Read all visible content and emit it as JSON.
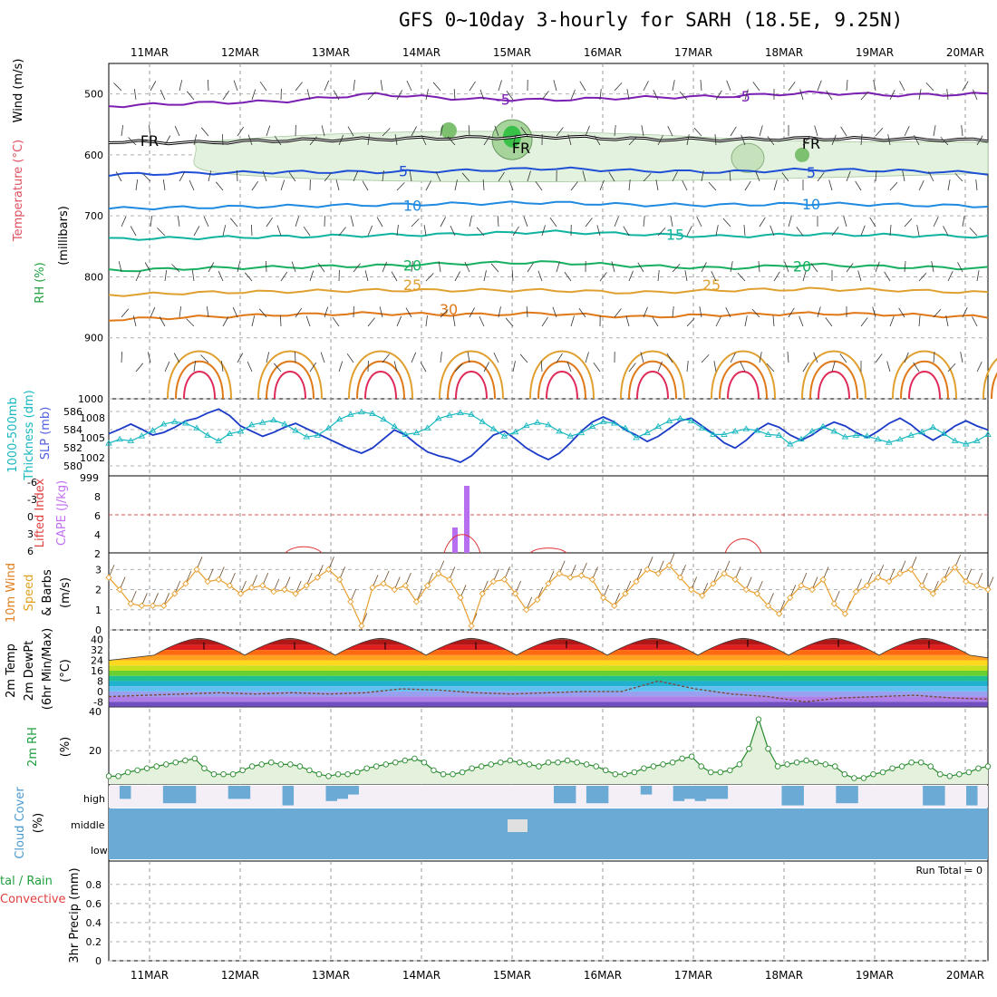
{
  "title": "GFS 0~10day 3-hourly for SARH (18.5E, 9.25N)",
  "dates": [
    "11MAR",
    "12MAR",
    "13MAR",
    "14MAR",
    "15MAR",
    "16MAR",
    "17MAR",
    "18MAR",
    "19MAR",
    "20MAR"
  ],
  "colors": {
    "purple": "#7b1fb3",
    "blue": "#1f4fd6",
    "lightblue": "#1f8ae0",
    "teal": "#10b3a0",
    "green": "#18b060",
    "gold": "#e0a030",
    "orange": "#e07818",
    "red": "#e02a5a",
    "cyan": "#18b8c0",
    "navy": "#1a3ac8",
    "precipBg": "#ffffff",
    "cloud": "#6aaad5"
  },
  "chart_data": [
    {
      "id": "upper_air",
      "type": "contour",
      "ylabel": "(millibars)",
      "legend": [
        "Wind (m/s)",
        "Temperature (°C)",
        "RH (%)"
      ],
      "yticks": [
        500,
        600,
        700,
        800,
        900,
        1000
      ],
      "ylim": [
        1000,
        450
      ],
      "isotherms": [
        {
          "label": "-5",
          "levels": [
            520,
            515,
            512,
            500,
            508,
            510,
            506,
            504,
            498,
            502,
            500
          ]
        },
        {
          "label": "FR",
          "levels": [
            578,
            580,
            576,
            574,
            572,
            570,
            574,
            575,
            573,
            574,
            576
          ]
        },
        {
          "label": "5",
          "levels": [
            632,
            630,
            628,
            628,
            626,
            622,
            626,
            628,
            624,
            626,
            630
          ]
        },
        {
          "label": "10",
          "levels": [
            688,
            686,
            684,
            682,
            680,
            678,
            682,
            682,
            680,
            682,
            684
          ]
        },
        {
          "label": "15",
          "levels": [
            738,
            736,
            734,
            732,
            730,
            726,
            730,
            734,
            730,
            732,
            734
          ]
        },
        {
          "label": "20",
          "levels": [
            790,
            786,
            784,
            782,
            778,
            776,
            782,
            786,
            780,
            784,
            786
          ]
        },
        {
          "label": "25",
          "levels": [
            830,
            826,
            824,
            822,
            822,
            822,
            826,
            822,
            820,
            822,
            826
          ]
        },
        {
          "label": "30",
          "levels": [
            870,
            866,
            862,
            860,
            862,
            860,
            866,
            862,
            860,
            862,
            866
          ]
        }
      ],
      "contour_labels": [
        "-5",
        "-5",
        "FR",
        "FR",
        "FR",
        "5",
        "5",
        "10",
        "10",
        "15",
        "20",
        "20",
        "25",
        "25",
        "30",
        "10",
        "10",
        "10",
        "30",
        "30",
        "10",
        "10"
      ]
    },
    {
      "id": "thickness_slp",
      "type": "line",
      "ylabel_left": "1000-500mb Thickness (dm)",
      "ylabel_right": "SLP (mb)",
      "yticks_left": [
        586,
        584,
        582,
        580
      ],
      "yticks_right": [
        1008,
        1005,
        1002,
        999
      ],
      "series": [
        {
          "name": "Thickness",
          "unit": "dm",
          "ylim": [
            578,
            586.5
          ],
          "values": [
            581.5,
            582.0,
            581.8,
            582.4,
            583.1,
            583.9,
            584.2,
            584.0,
            583.4,
            582.5,
            581.8,
            582.7,
            583.0,
            583.8,
            584.1,
            584.4,
            583.9,
            583.1,
            582.3,
            582.5,
            583.4,
            584.5,
            585.1,
            585.4,
            585.2,
            584.5,
            583.6,
            582.6,
            582.8,
            583.4,
            584.6,
            585.0,
            585.3,
            585.1,
            584.2,
            583.3,
            582.4,
            582.9,
            583.7,
            584.1,
            583.8,
            583.0,
            582.4,
            582.8,
            583.6,
            584.2,
            584.0,
            583.4,
            582.2,
            582.8,
            583.6,
            584.3,
            584.6,
            584.3,
            583.4,
            582.6,
            582.6,
            583.0,
            583.3,
            583.1,
            582.6,
            582.5,
            581.4,
            582.0,
            583.0,
            583.6,
            583.0,
            582.3,
            582.5,
            582.4,
            582.0,
            581.6,
            582.0,
            582.5,
            582.9,
            583.5,
            582.7,
            581.8,
            581.4,
            581.8,
            582.6
          ]
        },
        {
          "name": "SLP",
          "unit": "mb",
          "ylim": [
            999,
            1009.5
          ],
          "values": [
            1004.8,
            1005.5,
            1006.3,
            1005.5,
            1004.6,
            1005.0,
            1005.8,
            1006.8,
            1007.2,
            1008.0,
            1008.6,
            1007.6,
            1006.0,
            1005.2,
            1004.4,
            1005.0,
            1005.8,
            1006.4,
            1005.6,
            1004.8,
            1004.0,
            1003.2,
            1002.4,
            1001.8,
            1002.6,
            1004.0,
            1005.4,
            1004.6,
            1003.2,
            1002.0,
            1001.4,
            1001.0,
            1000.4,
            1001.4,
            1003.0,
            1004.6,
            1005.2,
            1004.0,
            1002.6,
            1001.6,
            1000.8,
            1001.8,
            1003.4,
            1005.2,
            1006.6,
            1007.4,
            1006.6,
            1005.4,
            1004.6,
            1003.6,
            1004.4,
            1005.6,
            1006.8,
            1007.2,
            1006.0,
            1004.8,
            1003.4,
            1002.6,
            1003.8,
            1005.4,
            1006.4,
            1005.8,
            1004.6,
            1003.8,
            1004.6,
            1005.8,
            1006.6,
            1006.0,
            1005.0,
            1004.2,
            1005.2,
            1006.4,
            1007.2,
            1006.2,
            1004.8,
            1003.8,
            1004.8,
            1006.0,
            1006.8,
            1006.0,
            1005.4
          ]
        }
      ]
    },
    {
      "id": "cape_li",
      "type": "bar",
      "ylabel_left": "Lifted Index",
      "ylabel_right": "CAPE (J/kg)",
      "yticks_left": [
        "-6",
        "-3",
        "0",
        "3",
        "6"
      ],
      "yticks_right": [
        "8",
        "6",
        "4",
        "2"
      ],
      "cape_bars": [
        {
          "x_day": 4.37,
          "value": 2.8
        },
        {
          "x_day": 4.5,
          "value": 7.4
        }
      ],
      "li_bumps": [
        {
          "center_day": 4.45,
          "peak": 3.0
        },
        {
          "center_day": 7.55,
          "peak": 2.3
        },
        {
          "center_day": 2.7,
          "peak": 1.0
        },
        {
          "center_day": 5.4,
          "peak": 0.8
        }
      ],
      "zero_line": 0
    },
    {
      "id": "wind10m",
      "type": "line",
      "ylabel": "10m Wind Speed & Barbs (m/s)",
      "yticks": [
        3,
        2,
        1,
        0
      ],
      "ylim": [
        0,
        3.6
      ],
      "values": [
        2.6,
        2.0,
        1.3,
        1.2,
        1.2,
        1.2,
        1.8,
        2.3,
        3.0,
        2.4,
        2.5,
        2.2,
        1.8,
        2.1,
        2.2,
        1.9,
        2.0,
        1.8,
        2.2,
        2.6,
        3.0,
        2.5,
        1.4,
        0.2,
        2.1,
        2.3,
        2.0,
        2.2,
        1.4,
        2.2,
        2.8,
        2.5,
        1.6,
        0.2,
        1.8,
        2.4,
        2.5,
        1.8,
        1.0,
        1.5,
        2.3,
        2.8,
        2.6,
        2.7,
        2.5,
        1.6,
        1.2,
        1.8,
        2.4,
        3.0,
        2.8,
        3.2,
        2.6,
        2.0,
        1.7,
        2.3,
        2.8,
        2.5,
        2.0,
        1.8,
        1.2,
        0.8,
        1.6,
        2.2,
        2.0,
        2.5,
        1.3,
        0.8,
        1.9,
        2.2,
        2.6,
        2.4,
        2.8,
        3.0,
        2.2,
        1.8,
        2.5,
        3.1,
        2.4,
        2.2,
        2.0
      ]
    },
    {
      "id": "temp2m",
      "type": "area",
      "ylabel": "2m Temp 2m DewPt (6hr Min/Max) (°C)",
      "yticks": [
        40,
        32,
        24,
        16,
        8,
        0,
        -8
      ],
      "ylim": [
        -12,
        44
      ],
      "temp_max": [
        38,
        38,
        38,
        38,
        39,
        39,
        40,
        40,
        39
      ],
      "temp_min": [
        27,
        27,
        27,
        27,
        27,
        27,
        27,
        27,
        26
      ],
      "dewpoint": [
        -4,
        -3,
        -2,
        -1,
        -2,
        -1,
        -2,
        -1,
        2,
        1,
        -1,
        -2,
        -1,
        0,
        0,
        8,
        2,
        -2,
        -4,
        -8,
        -5,
        -4,
        -3,
        -5,
        -6
      ]
    },
    {
      "id": "rh2m",
      "type": "area",
      "ylabel": "2m RH (%)",
      "yticks": [
        20
      ],
      "ylim": [
        3,
        40
      ],
      "values": [
        7,
        7,
        9,
        10,
        11,
        12,
        13,
        14,
        15,
        16,
        11,
        8,
        8,
        8,
        10,
        12,
        13,
        14,
        13,
        13,
        12,
        10,
        8,
        7,
        8,
        8,
        9,
        11,
        12,
        13,
        14,
        15,
        16,
        14,
        10,
        8,
        8,
        9,
        11,
        12,
        13,
        14,
        15,
        14,
        13,
        12,
        14,
        14,
        15,
        14,
        13,
        12,
        10,
        8,
        8,
        9,
        11,
        12,
        13,
        14,
        16,
        17,
        12,
        9,
        9,
        10,
        13,
        21,
        36,
        21,
        12,
        13,
        14,
        15,
        14,
        13,
        12,
        8,
        6,
        6,
        8,
        9,
        11,
        12,
        14,
        14,
        12,
        8,
        7,
        8,
        9,
        11,
        12
      ]
    },
    {
      "id": "cloud_cover",
      "type": "heatmap",
      "ylabel": "Cloud Cover (%)",
      "rows": [
        "high",
        "middle",
        "low"
      ],
      "high": [
        0,
        60,
        0,
        0,
        0,
        80,
        80,
        80,
        0,
        0,
        0,
        60,
        60,
        0,
        0,
        0,
        90,
        0,
        0,
        0,
        70,
        60,
        40,
        0,
        0,
        0,
        0,
        0,
        0,
        0,
        0,
        0,
        0,
        0,
        0,
        0,
        0,
        0,
        0,
        0,
        0,
        80,
        80,
        0,
        80,
        80,
        0,
        0,
        0,
        40,
        0,
        0,
        70,
        60,
        70,
        60,
        60,
        0,
        0,
        0,
        0,
        0,
        90,
        90,
        0,
        0,
        0,
        80,
        80,
        0,
        0,
        0,
        0,
        0,
        0,
        90,
        90,
        0,
        0,
        90,
        0
      ],
      "middle_gap": [
        {
          "day": 4.2,
          "width": 0.3
        }
      ],
      "low": "full"
    },
    {
      "id": "precip3h",
      "type": "bar",
      "ylabel": "3hr Precip (mm)",
      "legend": [
        "Total / Rain",
        "Convective"
      ],
      "yticks": [
        0.8,
        0.6,
        0.4,
        0.2,
        0
      ],
      "ylim": [
        0,
        0.95
      ],
      "values": [],
      "run_total": "Run Total = 0"
    }
  ]
}
